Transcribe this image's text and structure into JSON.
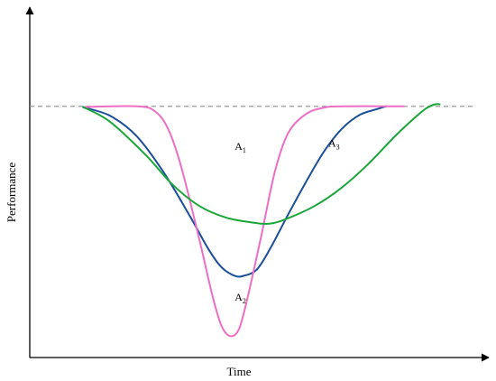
{
  "chart_data": {
    "type": "line",
    "title": "",
    "xlabel": "Time",
    "ylabel": "Performance",
    "xlim": [
      0,
      100
    ],
    "ylim": [
      0,
      100
    ],
    "grid": false,
    "axes": {
      "ticks": false,
      "arrowheads": true
    },
    "reference_line": {
      "y": 75,
      "style": "dashed",
      "color": "#999999",
      "x_range": [
        0,
        100
      ]
    },
    "series": [
      {
        "color": "#1b4f9b",
        "points": [
          [
            12,
            74.7
          ],
          [
            18,
            72.2
          ],
          [
            24,
            66.1
          ],
          [
            30,
            55.4
          ],
          [
            36,
            42.1
          ],
          [
            40,
            32.6
          ],
          [
            43,
            27
          ],
          [
            46,
            24.4
          ],
          [
            48,
            24.4
          ],
          [
            51,
            26.3
          ],
          [
            54,
            32.6
          ],
          [
            58,
            42.7
          ],
          [
            62,
            52.4
          ],
          [
            66,
            61.4
          ],
          [
            70,
            68.2
          ],
          [
            74,
            72.4
          ],
          [
            78,
            74.2
          ],
          [
            80,
            75
          ]
        ]
      },
      {
        "color": "#ee6ec3",
        "points": [
          [
            12,
            74.8
          ],
          [
            24,
            75
          ],
          [
            28,
            73.6
          ],
          [
            31,
            68.4
          ],
          [
            34,
            56.9
          ],
          [
            38,
            35.6
          ],
          [
            41,
            18.5
          ],
          [
            43,
            9.6
          ],
          [
            45,
            6.4
          ],
          [
            47,
            8.6
          ],
          [
            49,
            18.5
          ],
          [
            52,
            36.5
          ],
          [
            55,
            55.4
          ],
          [
            58,
            67
          ],
          [
            62,
            72.7
          ],
          [
            66,
            74.6
          ],
          [
            70,
            75
          ],
          [
            84,
            75
          ]
        ]
      },
      {
        "color": "#1aa63a",
        "points": [
          [
            12,
            74.8
          ],
          [
            18,
            70.4
          ],
          [
            26,
            60.5
          ],
          [
            32,
            51.7
          ],
          [
            38,
            45.3
          ],
          [
            44,
            41.8
          ],
          [
            50,
            40.3
          ],
          [
            54,
            40
          ],
          [
            58,
            41.6
          ],
          [
            64,
            45.3
          ],
          [
            70,
            50.7
          ],
          [
            76,
            57.8
          ],
          [
            82,
            66.1
          ],
          [
            86,
            71.1
          ],
          [
            89,
            74.4
          ],
          [
            91,
            75.6
          ],
          [
            92,
            75.6
          ]
        ]
      }
    ],
    "annotations": [
      {
        "text": "A",
        "sub": "1",
        "x": 46,
        "y": 62
      },
      {
        "text": "A",
        "sub": "2",
        "x": 46,
        "y": 17
      },
      {
        "text": "A",
        "sub": "3",
        "x": 67,
        "y": 63
      }
    ]
  }
}
